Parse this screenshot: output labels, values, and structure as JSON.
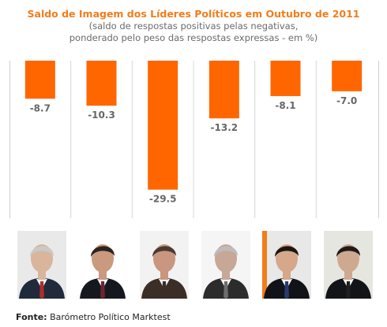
{
  "header": {
    "title": "Saldo de Imagem dos Líderes Políticos em Outubro de 2011",
    "subtitle_line1": "(saldo de respostas positivas pelas negativas,",
    "subtitle_line2": "ponderado pelo peso das respostas expressas - em %)"
  },
  "colors": {
    "bar": "#ff6600",
    "title": "#f07d1b",
    "value_label": "#666666",
    "grid": "#d8d8d8"
  },
  "chart_data": {
    "type": "bar",
    "title": "Saldo de Imagem dos Líderes Políticos em Outubro de 2011",
    "subtitle": "(saldo de respostas positivas pelas negativas, ponderado pelo peso das respostas expressas - em %)",
    "categories": [
      "",
      "",
      "",
      "",
      "",
      ""
    ],
    "values": [
      -8.7,
      -10.3,
      -29.5,
      -13.2,
      -8.1,
      -7.0
    ],
    "value_labels": [
      "-8.7",
      "-10.3",
      "-29.5",
      "-13.2",
      "-8.1",
      "-7.0"
    ],
    "xlabel": "",
    "ylabel": "",
    "ylim": [
      -31,
      0
    ],
    "grid": true,
    "legend": "none"
  },
  "photos": [
    "portrait-photo",
    "portrait-photo",
    "portrait-photo",
    "portrait-photo",
    "portrait-photo",
    "portrait-photo"
  ],
  "footer": {
    "source_label": "Fonte:",
    "source_text": " Barómetro Político Marktest"
  }
}
